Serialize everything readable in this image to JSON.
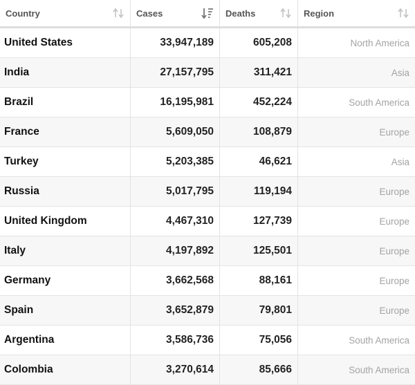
{
  "columns": [
    {
      "key": "country",
      "label": "Country",
      "sort": "none"
    },
    {
      "key": "cases",
      "label": "Cases",
      "sort": "descending"
    },
    {
      "key": "deaths",
      "label": "Deaths",
      "sort": "none"
    },
    {
      "key": "region",
      "label": "Region",
      "sort": "none"
    }
  ],
  "rows": [
    {
      "country": "United States",
      "cases": "33,947,189",
      "deaths": "605,208",
      "region": "North America"
    },
    {
      "country": "India",
      "cases": "27,157,795",
      "deaths": "311,421",
      "region": "Asia"
    },
    {
      "country": "Brazil",
      "cases": "16,195,981",
      "deaths": "452,224",
      "region": "South America"
    },
    {
      "country": "France",
      "cases": "5,609,050",
      "deaths": "108,879",
      "region": "Europe"
    },
    {
      "country": "Turkey",
      "cases": "5,203,385",
      "deaths": "46,621",
      "region": "Asia"
    },
    {
      "country": "Russia",
      "cases": "5,017,795",
      "deaths": "119,194",
      "region": "Europe"
    },
    {
      "country": "United Kingdom",
      "cases": "4,467,310",
      "deaths": "127,739",
      "region": "Europe"
    },
    {
      "country": "Italy",
      "cases": "4,197,892",
      "deaths": "125,501",
      "region": "Europe"
    },
    {
      "country": "Germany",
      "cases": "3,662,568",
      "deaths": "88,161",
      "region": "Europe"
    },
    {
      "country": "Spain",
      "cases": "3,652,879",
      "deaths": "79,801",
      "region": "Europe"
    },
    {
      "country": "Argentina",
      "cases": "3,586,736",
      "deaths": "75,056",
      "region": "South America"
    },
    {
      "country": "Colombia",
      "cases": "3,270,614",
      "deaths": "85,666",
      "region": "South America"
    }
  ],
  "colors": {
    "header_text": "#555555",
    "region_text": "#a3a3a3",
    "sort_inactive": "#c4c4c4",
    "sort_active": "#777777"
  }
}
